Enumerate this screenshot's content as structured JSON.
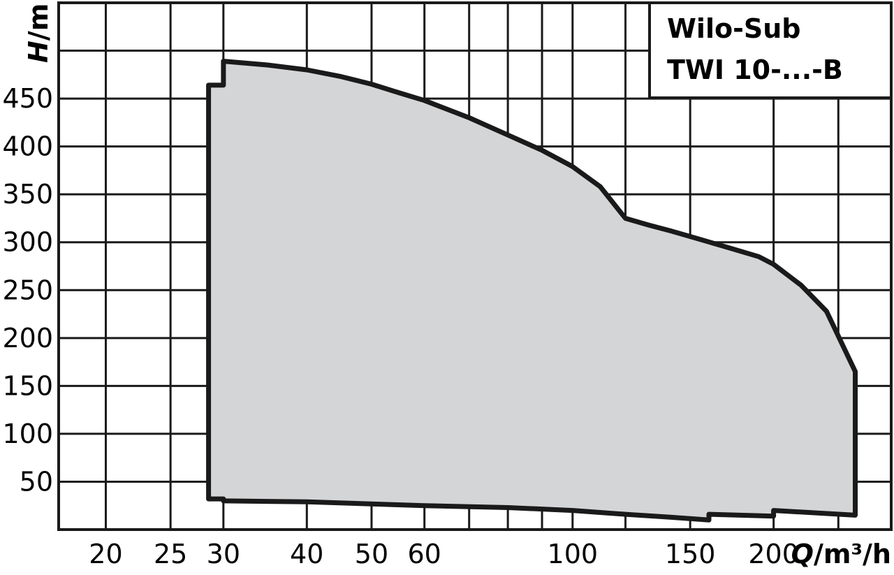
{
  "chart_data": {
    "type": "area",
    "title": "Wilo-Sub",
    "subtitle": "TWI 10-...-B",
    "xlabel": "Q/m³/h",
    "xlabel_italic_part": "Q",
    "xlabel_rest": "/m³/h",
    "ylabel": "H/m",
    "ylabel_italic_part": "H",
    "ylabel_rest": "/m",
    "xscale": "log",
    "xlim": [
      17,
      300
    ],
    "ylim": [
      0,
      550
    ],
    "x_ticks": [
      20,
      25,
      30,
      40,
      50,
      60,
      100,
      150,
      200
    ],
    "y_ticks": [
      50,
      100,
      150,
      200,
      250,
      300,
      350,
      400,
      450
    ],
    "grid": true,
    "fill_color": "#d4d5d7",
    "line_color": "#1a1a1a",
    "series": [
      {
        "x": [
          28.5,
          28.5,
          30,
          30,
          35,
          40,
          45,
          50,
          55,
          60,
          70,
          80,
          90,
          100,
          110,
          120,
          130,
          140,
          150,
          170,
          190,
          200,
          220,
          240,
          265,
          265,
          200,
          200,
          160,
          160,
          140,
          120,
          100,
          80,
          60,
          40,
          30,
          30,
          28.5
        ],
        "y": [
          32,
          464,
          464,
          489,
          485,
          480,
          473,
          465,
          456,
          448,
          430,
          412,
          396,
          379,
          358,
          325,
          318,
          312,
          306,
          295,
          285,
          277,
          255,
          228,
          165,
          15,
          20,
          14,
          16,
          10,
          13,
          16,
          20,
          23,
          25,
          29,
          30,
          32,
          32
        ]
      }
    ]
  }
}
